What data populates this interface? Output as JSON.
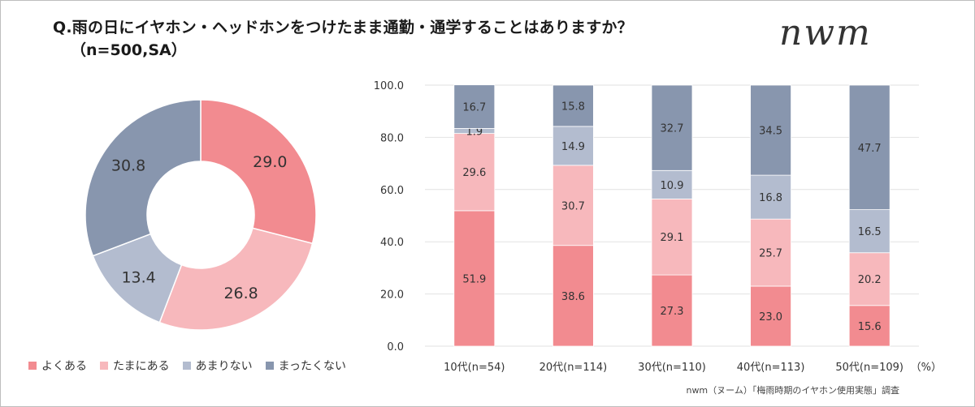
{
  "title": "Q.雨の日にイヤホン・ヘッドホンをつけたまま通勤・通学することはありますか？",
  "subtitle": "（n=500,SA）",
  "logo": "nwm",
  "source": "nwm（ヌーム）「梅雨時期のイヤホン使用実態」調査",
  "colors": {
    "よくある": "#f28b90",
    "たまにある": "#f7b8bc",
    "あまりない": "#b3bccf",
    "まったくない": "#8896ae"
  },
  "legend": [
    "よくある",
    "たまにある",
    "あまりない",
    "まったくない"
  ],
  "chart_data": [
    {
      "type": "pie",
      "variant": "donut",
      "categories": [
        "よくある",
        "たまにある",
        "あまりない",
        "まったくない"
      ],
      "values": [
        29.0,
        26.8,
        13.4,
        30.8
      ],
      "value_labels": [
        "29.0",
        "26.8",
        "13.4",
        "30.8"
      ]
    },
    {
      "type": "bar",
      "stacked": true,
      "categories": [
        "10代(n=54)",
        "20代(n=114)",
        "30代(n=110)",
        "40代(n=113)",
        "50代(n=109)"
      ],
      "series": [
        {
          "name": "よくある",
          "values": [
            51.9,
            38.6,
            27.3,
            23.0,
            15.6
          ],
          "labels": [
            "51.9",
            "38.6",
            "27.3",
            "23.0",
            "15.6"
          ]
        },
        {
          "name": "たまにある",
          "values": [
            29.6,
            30.7,
            29.1,
            25.7,
            20.2
          ],
          "labels": [
            "29.6",
            "30.7",
            "29.1",
            "25.7",
            "20.2"
          ]
        },
        {
          "name": "あまりない",
          "values": [
            1.9,
            14.9,
            10.9,
            16.8,
            16.5
          ],
          "labels": [
            "1.9",
            "14.9",
            "10.9",
            "16.8",
            "16.5"
          ]
        },
        {
          "name": "まったくない",
          "values": [
            16.7,
            15.8,
            32.7,
            34.5,
            47.7
          ],
          "labels": [
            "16.7",
            "15.8",
            "32.7",
            "34.5",
            "47.7"
          ]
        }
      ],
      "ylim": [
        0,
        100
      ],
      "yticks": [
        "0.0",
        "20.0",
        "40.0",
        "60.0",
        "80.0",
        "100.0"
      ],
      "unit_label": "（%）",
      "grid": true
    }
  ]
}
